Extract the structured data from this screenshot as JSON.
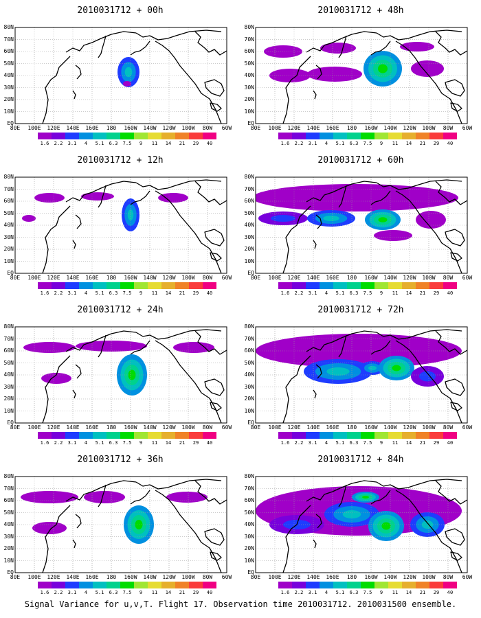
{
  "panels": [
    {
      "title": "2010031712 + 00h"
    },
    {
      "title": "2010031712 + 48h"
    },
    {
      "title": "2010031712 + 12h"
    },
    {
      "title": "2010031712 + 60h"
    },
    {
      "title": "2010031712 + 24h"
    },
    {
      "title": "2010031712 + 72h"
    },
    {
      "title": "2010031712 + 36h"
    },
    {
      "title": "2010031712 + 84h"
    }
  ],
  "lat_labels": [
    "80N",
    "70N",
    "60N",
    "50N",
    "40N",
    "30N",
    "20N",
    "10N",
    "EQ"
  ],
  "lon_labels": [
    "80E",
    "100E",
    "120E",
    "140E",
    "160E",
    "180",
    "160W",
    "140W",
    "120W",
    "100W",
    "80W",
    "60W"
  ],
  "colorbar": {
    "labels": [
      "1.6",
      "2.2",
      "3.1",
      "4",
      "5.1",
      "6.3",
      "7.5",
      "9",
      "11",
      "14",
      "21",
      "29",
      "40"
    ],
    "colors": [
      "#a000c8",
      "#7800dc",
      "#1e3cff",
      "#0090e0",
      "#00c0c0",
      "#00d28c",
      "#00dc00",
      "#a0e632",
      "#e6dc32",
      "#e6af2d",
      "#f08228",
      "#fa3c3c",
      "#f00082"
    ]
  },
  "caption": "Signal Variance for u,v,T. Flight 17. Observation time 2010031712. 2010031500 ensemble."
}
